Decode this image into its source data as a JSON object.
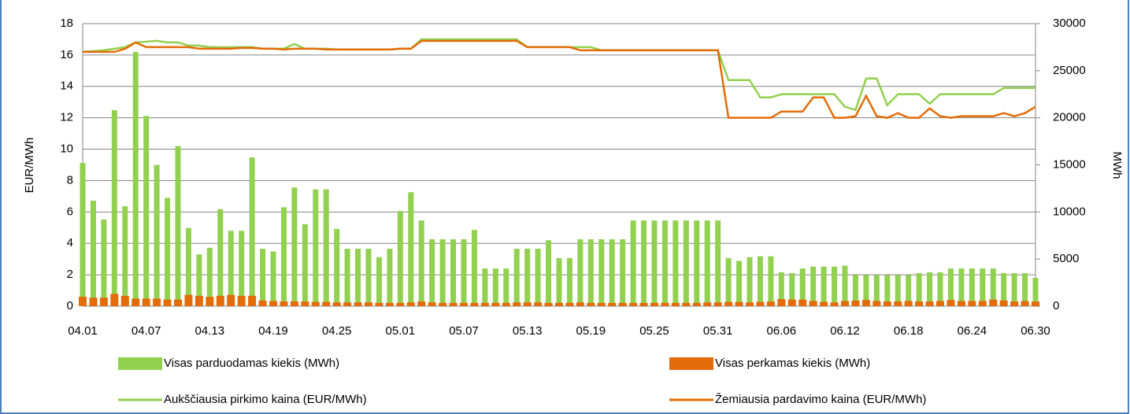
{
  "chart_data": {
    "type": "combo",
    "y_label": "EUR/MWh",
    "y2_label": "MWh",
    "categories": [
      "04.01",
      null,
      null,
      null,
      null,
      null,
      "04.07",
      null,
      null,
      null,
      null,
      null,
      "04.13",
      null,
      null,
      null,
      null,
      null,
      "04.19",
      null,
      null,
      null,
      null,
      null,
      "04.25",
      null,
      null,
      null,
      null,
      null,
      "05.01",
      null,
      null,
      null,
      null,
      null,
      "05.07",
      null,
      null,
      null,
      null,
      null,
      "05.13",
      null,
      null,
      null,
      null,
      null,
      "05.19",
      null,
      null,
      null,
      null,
      null,
      "05.25",
      null,
      null,
      null,
      null,
      null,
      "05.31",
      null,
      null,
      null,
      null,
      null,
      "06.06",
      null,
      null,
      null,
      null,
      null,
      "06.12",
      null,
      null,
      null,
      null,
      null,
      "06.18",
      null,
      null,
      null,
      null,
      null,
      "06.24",
      null,
      null,
      null,
      null,
      null,
      "06.30"
    ],
    "ylim": [
      0,
      18
    ],
    "yticks": [
      0,
      2,
      4,
      6,
      8,
      10,
      12,
      14,
      16,
      18
    ],
    "y2lim": [
      0,
      30000
    ],
    "y2ticks": [
      0,
      5000,
      10000,
      15000,
      20000,
      25000,
      30000
    ],
    "grid": true,
    "series": [
      {
        "name": "Visas parduodamas kiekis (MWh)",
        "type": "bar",
        "axis": "y2",
        "color": "#92d050",
        "values": [
          15200,
          11200,
          9200,
          20800,
          10600,
          27000,
          20200,
          15000,
          11500,
          17000,
          8300,
          5500,
          6200,
          10300,
          8000,
          8000,
          15800,
          6100,
          5800,
          10500,
          12600,
          8700,
          12400,
          12400,
          8200,
          6100,
          6100,
          6100,
          5200,
          6100,
          10100,
          12100,
          9100,
          7100,
          7100,
          7100,
          7100,
          8100,
          4000,
          4000,
          4000,
          6100,
          6100,
          6100,
          7000,
          5100,
          5100,
          7100,
          7100,
          7100,
          7100,
          7100,
          9100,
          9100,
          9100,
          9100,
          9100,
          9100,
          9100,
          9100,
          9100,
          5100,
          4800,
          5200,
          5300,
          5300,
          3600,
          3500,
          4000,
          4200,
          4200,
          4200,
          4300,
          3300,
          3300,
          3300,
          3300,
          3300,
          3300,
          3500,
          3600,
          3600,
          4000,
          4000,
          4000,
          4000,
          4000,
          3500,
          3500,
          3500,
          3000
        ]
      },
      {
        "name": "Visas perkamas kiekis (MWh)",
        "type": "bar",
        "axis": "y2",
        "color": "#e36c09",
        "values": [
          1000,
          900,
          900,
          1300,
          1100,
          800,
          800,
          800,
          700,
          700,
          1200,
          1100,
          1000,
          1100,
          1200,
          1100,
          1100,
          600,
          550,
          500,
          500,
          500,
          450,
          450,
          400,
          400,
          400,
          400,
          350,
          350,
          350,
          400,
          500,
          400,
          350,
          350,
          350,
          350,
          350,
          350,
          350,
          400,
          400,
          400,
          350,
          350,
          350,
          400,
          350,
          350,
          350,
          350,
          350,
          350,
          350,
          350,
          350,
          350,
          350,
          400,
          400,
          450,
          450,
          400,
          450,
          500,
          750,
          700,
          700,
          550,
          450,
          400,
          550,
          600,
          650,
          550,
          500,
          500,
          550,
          500,
          500,
          550,
          650,
          550,
          550,
          550,
          700,
          600,
          500,
          550,
          500
        ]
      },
      {
        "name": "Aukščiausia pirkimo kaina (EUR/MWh)",
        "type": "line",
        "color": "#92d050",
        "values": [
          16.2,
          16.25,
          16.3,
          16.4,
          16.5,
          16.8,
          16.85,
          16.9,
          16.8,
          16.8,
          16.6,
          16.6,
          16.5,
          16.5,
          16.5,
          16.5,
          16.5,
          16.4,
          16.4,
          16.4,
          16.7,
          16.4,
          16.4,
          16.4,
          16.35,
          16.35,
          16.35,
          16.35,
          16.35,
          16.35,
          16.4,
          16.4,
          17.0,
          17.0,
          17.0,
          17.0,
          17.0,
          17.0,
          17.0,
          17.0,
          17.0,
          17.0,
          16.5,
          16.5,
          16.5,
          16.5,
          16.5,
          16.5,
          16.5,
          16.3,
          16.3,
          16.3,
          16.3,
          16.3,
          16.3,
          16.3,
          16.3,
          16.3,
          16.3,
          16.3,
          16.3,
          14.4,
          14.4,
          14.4,
          13.3,
          13.3,
          13.5,
          13.5,
          13.5,
          13.5,
          13.5,
          13.5,
          12.7,
          12.5,
          14.5,
          14.5,
          12.8,
          13.5,
          13.5,
          13.5,
          12.9,
          13.5,
          13.5,
          13.5,
          13.5,
          13.5,
          13.5,
          13.9,
          13.9,
          13.9,
          13.9
        ]
      },
      {
        "name": "Žemiausia pardavimo kaina (EUR/MWh)",
        "type": "line",
        "color": "#e36c09",
        "values": [
          16.2,
          16.2,
          16.2,
          16.2,
          16.4,
          16.8,
          16.5,
          16.5,
          16.5,
          16.5,
          16.5,
          16.4,
          16.4,
          16.4,
          16.4,
          16.45,
          16.45,
          16.4,
          16.4,
          16.35,
          16.4,
          16.4,
          16.4,
          16.35,
          16.35,
          16.35,
          16.35,
          16.35,
          16.35,
          16.35,
          16.4,
          16.4,
          16.9,
          16.9,
          16.9,
          16.9,
          16.9,
          16.9,
          16.9,
          16.9,
          16.9,
          16.9,
          16.5,
          16.5,
          16.5,
          16.5,
          16.5,
          16.3,
          16.3,
          16.3,
          16.3,
          16.3,
          16.3,
          16.3,
          16.3,
          16.3,
          16.3,
          16.3,
          16.3,
          16.3,
          16.3,
          12.0,
          12.0,
          12.0,
          12.0,
          12.0,
          12.4,
          12.4,
          12.4,
          13.3,
          13.3,
          12.0,
          12.0,
          12.1,
          13.4,
          12.1,
          12.0,
          12.3,
          12.0,
          12.0,
          12.6,
          12.1,
          12.0,
          12.1,
          12.1,
          12.1,
          12.1,
          12.3,
          12.1,
          12.3,
          12.7
        ]
      }
    ]
  }
}
